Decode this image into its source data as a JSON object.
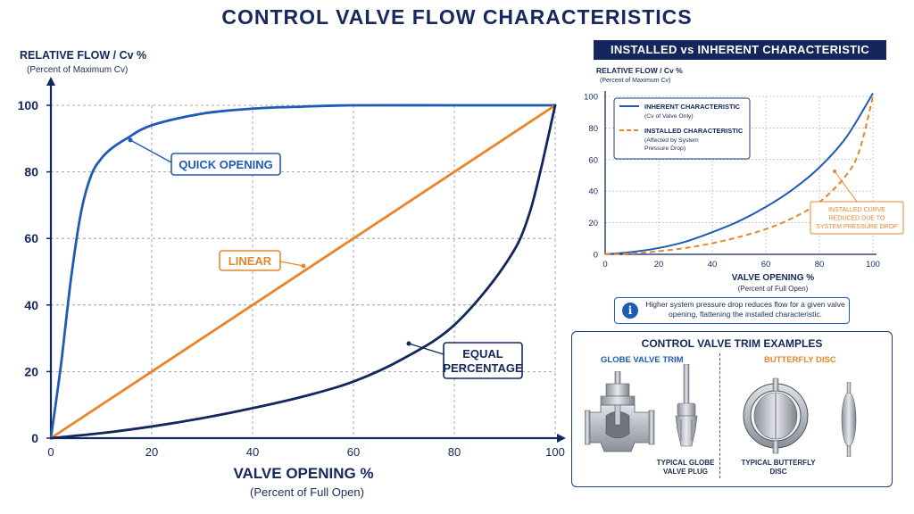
{
  "title": "CONTROL VALVE FLOW CHARACTERISTICS",
  "colors": {
    "navy": "#13275c",
    "blue": "#1f5bb5",
    "orange": "#e8852a",
    "grid": "#9aa0aa"
  },
  "chart_data": [
    {
      "type": "line",
      "ylabel": "RELATIVE FLOW / Cv %",
      "ylabel_sub": "(Percent of Maximum Cv)",
      "xlabel": "VALVE OPENING %",
      "xlabel_sub": "(Percent of Full Open)",
      "xlim": [
        0,
        100
      ],
      "ylim": [
        0,
        100
      ],
      "xticks": [
        "0",
        "20",
        "40",
        "60",
        "80",
        "100"
      ],
      "yticks": [
        "0",
        "20",
        "40",
        "60",
        "80",
        "100"
      ],
      "grid": true,
      "series": [
        {
          "name": "QUICK OPENING",
          "color": "#1f5bb5",
          "x": [
            0,
            2,
            4,
            6,
            8,
            10,
            12,
            15,
            20,
            30,
            40,
            50,
            60,
            80,
            100
          ],
          "y": [
            0,
            22,
            48,
            68,
            79,
            84,
            87,
            90,
            94,
            97.5,
            99,
            99.6,
            100,
            100,
            100
          ]
        },
        {
          "name": "LINEAR",
          "color": "#e8852a",
          "x": [
            0,
            100
          ],
          "y": [
            0,
            100
          ]
        },
        {
          "name": "EQUAL\nPERCENTAGE",
          "color": "#13275c",
          "x": [
            0,
            10,
            20,
            30,
            40,
            50,
            60,
            70,
            80,
            90,
            95,
            100
          ],
          "y": [
            0,
            1.5,
            3.5,
            6,
            9,
            12.5,
            17,
            24,
            34,
            52,
            68,
            100
          ]
        }
      ]
    },
    {
      "type": "line",
      "title": "INSTALLED vs INHERENT CHARACTERISTIC",
      "ylabel": "RELATIVE FLOW / Cv %",
      "ylabel_sub": "(Percent of Maximum Cv)",
      "xlabel": "VALVE OPENING %",
      "xlabel_sub": "(Percent of Full Open)",
      "xlim": [
        0,
        100
      ],
      "ylim": [
        0,
        100
      ],
      "xticks": [
        "0",
        "20",
        "40",
        "60",
        "80",
        "100"
      ],
      "yticks": [
        "0",
        "20",
        "40",
        "60",
        "80",
        "100"
      ],
      "grid": true,
      "legend": "top-left",
      "series": [
        {
          "name": "INHERENT CHARACTERISTIC",
          "subtitle": "(Cv of Valve Only)",
          "color": "#1f5bb5",
          "style": "solid",
          "x": [
            0,
            10,
            20,
            30,
            40,
            50,
            60,
            70,
            80,
            90,
            100
          ],
          "y": [
            0,
            1.5,
            4,
            8,
            14,
            21,
            30,
            41,
            55,
            74,
            102
          ]
        },
        {
          "name": "INSTALLED CHARACTERISTIC",
          "subtitle": "(Affected by System\nPressure Drop)",
          "color": "#e8852a",
          "style": "dashed",
          "x": [
            0,
            10,
            20,
            30,
            40,
            50,
            60,
            70,
            80,
            90,
            95,
            100
          ],
          "y": [
            0,
            0.5,
            2,
            4,
            7,
            11,
            16,
            23,
            33,
            50,
            66,
            100
          ]
        }
      ],
      "annotation": "INSTALLED CURVE\nREDUCED DUE TO\nSYSTEM PRESSURE DROP"
    }
  ],
  "info": "Higher system pressure drop reduces flow for a given valve opening, flattening the installed characteristic.",
  "trim": {
    "title": "CONTROL VALVE TRIM EXAMPLES",
    "globe_title": "GLOBE VALVE TRIM",
    "butterfly_title": "BUTTERFLY DISC",
    "globe_caption": "TYPICAL GLOBE\nVALVE PLUG",
    "butterfly_caption": "TYPICAL BUTTERFLY\nDISC"
  }
}
